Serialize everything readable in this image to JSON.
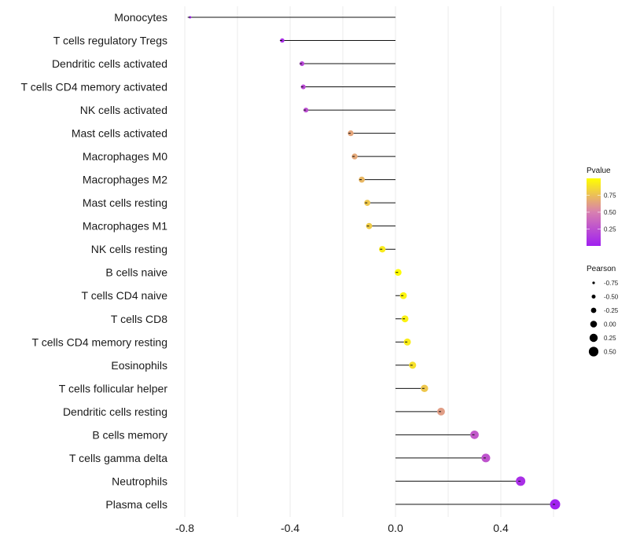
{
  "chart_data": {
    "type": "lollipop",
    "title": "",
    "xlabel": "",
    "ylabel": "",
    "xlim": [
      -0.81,
      0.64
    ],
    "xticks": [
      -0.8,
      -0.4,
      0.0,
      0.4
    ],
    "xtick_labels": [
      "-0.8",
      "-0.4",
      "0.0",
      "0.4"
    ],
    "minor_grid": [
      -0.6,
      -0.2,
      0.2,
      0.6
    ],
    "grid": true,
    "categories": [
      "Monocytes",
      "T cells regulatory  Tregs",
      "Dendritic cells activated",
      "T cells CD4 memory activated",
      "NK cells activated",
      "Mast cells activated",
      "Macrophages M0",
      "Macrophages M2",
      "Mast cells resting",
      "Macrophages M1",
      "NK cells resting",
      "B cells naive",
      "T cells CD4 naive",
      "T cells CD8",
      "T cells CD4 memory resting",
      "Eosinophils",
      "T cells follicular helper",
      "Dendritic cells resting",
      "B cells memory",
      "T cells gamma delta",
      "Neutrophils",
      "Plasma cells"
    ],
    "values": [
      -0.78,
      -0.43,
      -0.355,
      -0.35,
      -0.34,
      -0.17,
      -0.155,
      -0.128,
      -0.107,
      -0.1,
      -0.05,
      0.01,
      0.03,
      0.036,
      0.045,
      0.065,
      0.11,
      0.173,
      0.3,
      0.343,
      0.475,
      0.606
    ],
    "pvalues": [
      0.0,
      0.08,
      0.2,
      0.22,
      0.24,
      0.65,
      0.66,
      0.72,
      0.78,
      0.8,
      0.92,
      0.99,
      0.96,
      0.95,
      0.93,
      0.88,
      0.78,
      0.62,
      0.3,
      0.27,
      0.08,
      0.01
    ],
    "legend": {
      "color": {
        "title": "Pvalue",
        "ticks": [
          0.25,
          0.5,
          0.75
        ],
        "tick_labels": [
          "0.25",
          "0.50",
          "0.75"
        ],
        "low_color": "#a020f0",
        "mid_color": "#d87fb0",
        "high_color": "#ffff00"
      },
      "size": {
        "title": "Pearson",
        "values": [
          -0.75,
          -0.5,
          -0.25,
          0.0,
          0.25,
          0.5
        ],
        "labels": [
          "-0.75",
          "-0.50",
          "-0.25",
          "0.00",
          "0.25",
          "0.50"
        ]
      },
      "placement": "right"
    }
  }
}
